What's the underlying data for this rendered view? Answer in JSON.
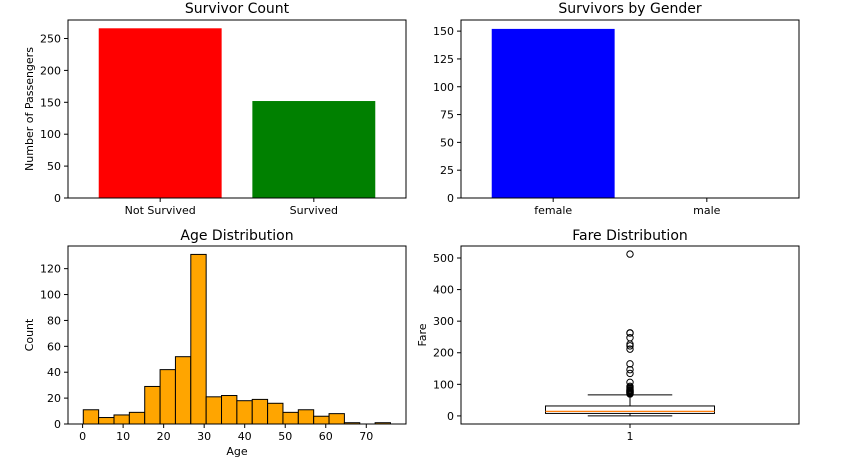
{
  "chart_data": [
    {
      "type": "bar",
      "title": "Survivor Count",
      "xlabel": "",
      "ylabel": "Number of Passengers",
      "categories": [
        "Not Survived",
        "Survived"
      ],
      "values": [
        266,
        152
      ],
      "colors": [
        "#ff0000",
        "#008000"
      ],
      "ylim": [
        0,
        279
      ],
      "yticks": [
        0,
        50,
        100,
        150,
        200,
        250
      ],
      "grid": false
    },
    {
      "type": "bar",
      "title": "Survivors by Gender",
      "xlabel": "",
      "ylabel": "",
      "categories": [
        "female",
        "male"
      ],
      "values": [
        152,
        0
      ],
      "colors": [
        "#0000ff",
        "#0000ff"
      ],
      "ylim": [
        0,
        160
      ],
      "yticks": [
        0,
        25,
        50,
        75,
        100,
        125,
        150
      ],
      "grid": false
    },
    {
      "type": "bar",
      "subtype": "histogram",
      "title": "Age Distribution",
      "xlabel": "Age",
      "ylabel": "Count",
      "bin_start": 0.17,
      "bin_width": 3.79,
      "counts": [
        11,
        5,
        7,
        9,
        29,
        42,
        52,
        131,
        21,
        22,
        18,
        19,
        16,
        9,
        11,
        6,
        8,
        1,
        0,
        1
      ],
      "color": "#ffa500",
      "edgecolor": "#000000",
      "xlim": [
        -3.6,
        79.8
      ],
      "ylim": [
        0,
        137.5
      ],
      "xticks": [
        0,
        10,
        20,
        30,
        40,
        50,
        60,
        70
      ],
      "yticks": [
        0,
        20,
        40,
        60,
        80,
        100,
        120
      ],
      "grid": false
    },
    {
      "type": "box",
      "title": "Fare Distribution",
      "xlabel": "",
      "ylabel": "Fare",
      "categories": [
        "1"
      ],
      "stats": {
        "whislo": 0,
        "q1": 7.9,
        "median": 14.45,
        "q3": 31.5,
        "whishi": 66.6
      },
      "fliers": [
        69.55,
        71.28,
        73.5,
        75.25,
        76.29,
        78.85,
        79.2,
        81.86,
        83.16,
        86.5,
        90,
        93.5,
        106.42,
        134.5,
        146.52,
        164.87,
        211.5,
        221.78,
        227.52,
        247.52,
        262.38,
        263,
        512.33
      ],
      "median_color": "#ff7f0e",
      "ylim": [
        -25.6,
        538
      ],
      "yticks": [
        0,
        100,
        200,
        300,
        400,
        500
      ],
      "grid": false
    }
  ]
}
